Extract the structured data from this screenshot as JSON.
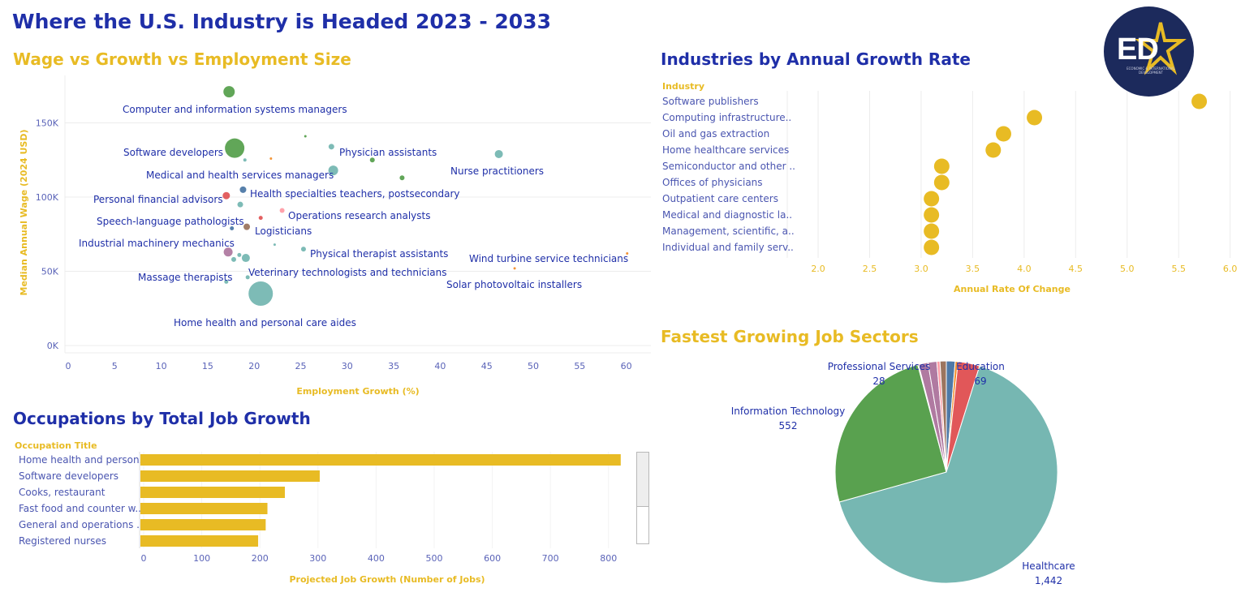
{
  "page": {
    "title": "Where the U.S. Industry is Headed 2023 - 2033",
    "logo": {
      "icon": "ed-star-logo",
      "text": "ED",
      "subtext": "ECONOMIC & INTERNATIONAL DEVELOPMENT"
    }
  },
  "colors": {
    "navy": "#1f2fa8",
    "gold": "#e8bb24",
    "grid": "#ececec"
  },
  "sections": {
    "scatter_title": "Wage vs Growth vs Employment Size",
    "industry_title": "Industries by Annual Growth Rate",
    "occupations_title": "Occupations by Total Job Growth",
    "sectors_title": "Fastest Growing Job Sectors"
  },
  "chart_data": [
    {
      "id": "scatter",
      "type": "scatter",
      "xlabel": "Employment Growth (%)",
      "ylabel": "Median Annual Wage (2024 USD)",
      "xlim": [
        0,
        63
      ],
      "ylim": [
        0,
        182000
      ],
      "xticks": [
        0,
        5,
        10,
        15,
        20,
        25,
        30,
        35,
        40,
        45,
        50,
        55,
        60
      ],
      "yticks": [
        0,
        50000,
        100000,
        150000
      ],
      "ytick_labels": [
        "0K",
        "50K",
        "100K",
        "150K"
      ],
      "grid": "horizontal",
      "points": [
        {
          "label": "Computer and information systems managers",
          "x": 17.3,
          "y": 171000,
          "r": 7,
          "color": "#59a14f",
          "lx": 151,
          "ly": 135,
          "anchor": "start"
        },
        {
          "label": "Software developers",
          "x": 17.9,
          "y": 133000,
          "r": 12,
          "color": "#59a14f",
          "lx": 152,
          "ly": 188,
          "anchor": "start"
        },
        {
          "label": "Physician assistants",
          "x": 28.3,
          "y": 134000,
          "r": 3.5,
          "color": "#76b7b2",
          "lx": 418,
          "ly": 188,
          "anchor": "start"
        },
        {
          "label": "Nurse practitioners",
          "x": 46.3,
          "y": 129000,
          "r": 5,
          "color": "#76b7b2",
          "lx": 555,
          "ly": 211,
          "anchor": "start"
        },
        {
          "label": "Medical and health services managers",
          "x": 28.5,
          "y": 118000,
          "r": 6,
          "color": "#76b7b2",
          "lx": 180,
          "ly": 216,
          "anchor": "start"
        },
        {
          "label": "Health specialties teachers, postsecondary",
          "x": 18.8,
          "y": 105000,
          "r": 4,
          "color": "#4e79a7",
          "lx": 308,
          "ly": 239,
          "anchor": "start"
        },
        {
          "label": "Personal financial advisors",
          "x": 17.0,
          "y": 101000,
          "r": 4.5,
          "color": "#e15759",
          "lx": 115,
          "ly": 246,
          "anchor": "start"
        },
        {
          "label": "Operations research analysts",
          "x": 23.0,
          "y": 91000,
          "r": 3,
          "color": "#ff9da7",
          "lx": 355,
          "ly": 266,
          "anchor": "start"
        },
        {
          "label": "Speech-language pathologists",
          "x": 18.5,
          "y": 95000,
          "r": 3.5,
          "color": "#76b7b2",
          "lx": 119,
          "ly": 273,
          "anchor": "start"
        },
        {
          "label": "Logisticians",
          "x": 19.2,
          "y": 80000,
          "r": 4,
          "color": "#9c755f",
          "lx": 314,
          "ly": 285,
          "anchor": "start"
        },
        {
          "label": "Industrial machinery mechanics",
          "x": 17.6,
          "y": 79000,
          "r": 2.5,
          "color": "#4e79a7",
          "lx": 97,
          "ly": 300,
          "anchor": "start"
        },
        {
          "label": "Physical therapist assistants",
          "x": 25.3,
          "y": 65000,
          "r": 3,
          "color": "#76b7b2",
          "lx": 382,
          "ly": 313,
          "anchor": "start"
        },
        {
          "label": "Wind turbine service technicians",
          "x": 60.1,
          "y": 62000,
          "r": 1.5,
          "color": "#f28e2b",
          "lx": 578,
          "ly": 319,
          "anchor": "start"
        },
        {
          "label": "Veterinary technologists and technicians",
          "x": 19.1,
          "y": 59000,
          "r": 5,
          "color": "#76b7b2",
          "lx": 306,
          "ly": 336,
          "anchor": "start"
        },
        {
          "label": "Massage therapists",
          "x": 17.2,
          "y": 63000,
          "r": 5.5,
          "color": "#b07aa1",
          "lx": 170,
          "ly": 342,
          "anchor": "start"
        },
        {
          "label": "Solar photovoltaic installers",
          "x": 48.0,
          "y": 52000,
          "r": 1.5,
          "color": "#f28e2b",
          "lx": 550,
          "ly": 351,
          "anchor": "start"
        },
        {
          "label": "Home health and personal care aides",
          "x": 20.7,
          "y": 35000,
          "r": 15,
          "color": "#76b7b2",
          "lx": 214,
          "ly": 398,
          "anchor": "start"
        },
        {
          "label": "",
          "x": 25.5,
          "y": 141000,
          "r": 1.5,
          "color": "#59a14f"
        },
        {
          "label": "",
          "x": 21.8,
          "y": 126000,
          "r": 1.5,
          "color": "#f28e2b"
        },
        {
          "label": "",
          "x": 19.0,
          "y": 125000,
          "r": 2,
          "color": "#76b7b2"
        },
        {
          "label": "",
          "x": 32.7,
          "y": 125000,
          "r": 3,
          "color": "#59a14f"
        },
        {
          "label": "",
          "x": 35.9,
          "y": 113000,
          "r": 3,
          "color": "#59a14f"
        },
        {
          "label": "",
          "x": 20.7,
          "y": 86000,
          "r": 2.5,
          "color": "#e15759"
        },
        {
          "label": "",
          "x": 22.2,
          "y": 68000,
          "r": 1.5,
          "color": "#76b7b2"
        },
        {
          "label": "",
          "x": 18.4,
          "y": 61000,
          "r": 2.5,
          "color": "#76b7b2"
        },
        {
          "label": "",
          "x": 17.8,
          "y": 58000,
          "r": 3,
          "color": "#76b7b2"
        },
        {
          "label": "",
          "x": 19.3,
          "y": 46000,
          "r": 2.5,
          "color": "#76b7b2"
        },
        {
          "label": "",
          "x": 17.0,
          "y": 43000,
          "r": 2.5,
          "color": "#76b7b2"
        }
      ]
    },
    {
      "id": "industries",
      "type": "dot",
      "header": "Industry",
      "xlabel": "Annual Rate Of Change",
      "xlim": [
        1.7,
        6.05
      ],
      "xticks": [
        2.0,
        2.5,
        3.0,
        3.5,
        4.0,
        4.5,
        5.0,
        5.5,
        6.0
      ],
      "categories": [
        "Software publishers",
        "Computing infrastructure..",
        "Oil and gas extraction",
        "Home healthcare services",
        "Semiconductor and other ..",
        "Offices of physicians",
        "Outpatient care centers",
        "Medical and diagnostic la..",
        "Management, scientific, a..",
        "Individual and family serv.."
      ],
      "values": [
        5.7,
        4.1,
        3.8,
        3.7,
        3.2,
        3.2,
        3.1,
        3.1,
        3.1,
        3.1
      ],
      "color": "#e8bb24"
    },
    {
      "id": "occupations",
      "type": "bar",
      "header": "Occupation Title",
      "xlabel": "Projected Job Growth (Number of Jobs)",
      "xlim": [
        -7,
        845
      ],
      "xticks": [
        0,
        100,
        200,
        300,
        400,
        500,
        600,
        700,
        800
      ],
      "categories": [
        "Home health and person..",
        "Software developers",
        "Cooks, restaurant",
        "Fast food and counter w..",
        "General and operations ..",
        "Registered nurses"
      ],
      "values": [
        821,
        303,
        243,
        213,
        210,
        197
      ],
      "color": "#e8bb24"
    },
    {
      "id": "sectors",
      "type": "pie",
      "slices": [
        {
          "name": "Healthcare",
          "value": 1442,
          "label": "1,442",
          "color": "#76b7b2",
          "show": true,
          "nx": 1292,
          "ny": 698,
          "vx": 1292,
          "vy": 716
        },
        {
          "name": "Information Technology",
          "value": 552,
          "label": "552",
          "color": "#59a14f",
          "show": true,
          "nx": 971,
          "ny": 507,
          "vx": 971,
          "vy": 525
        },
        {
          "name": "",
          "value": 3,
          "label": "",
          "color": "#e8bb24",
          "show": false
        },
        {
          "name": "",
          "value": 30,
          "label": "",
          "color": "#b07aa1",
          "show": false
        },
        {
          "name": "Professional Services",
          "value": 28,
          "label": "28",
          "color": "#b07aa1",
          "show": false
        },
        {
          "name": "",
          "value": 10,
          "label": "",
          "color": "#ff9da7",
          "show": false
        },
        {
          "name": "",
          "value": 20,
          "label": "",
          "color": "#9c755f",
          "show": false
        },
        {
          "name": "",
          "value": 28,
          "label": "",
          "color": "#4e79a7",
          "show": false
        },
        {
          "name": "",
          "value": 9,
          "label": "",
          "color": "#f28e2b",
          "show": false
        },
        {
          "name": "Education",
          "value": 69,
          "label": "69",
          "color": "#e15759",
          "show": false
        }
      ],
      "labels": [
        {
          "name": "Professional Services",
          "value": "28",
          "nx": 1083,
          "ny": 452,
          "vx": 1083,
          "vy": 470
        },
        {
          "name": "Education",
          "value": "69",
          "nx": 1208,
          "ny": 452,
          "vx": 1208,
          "vy": 470
        }
      ]
    }
  ]
}
